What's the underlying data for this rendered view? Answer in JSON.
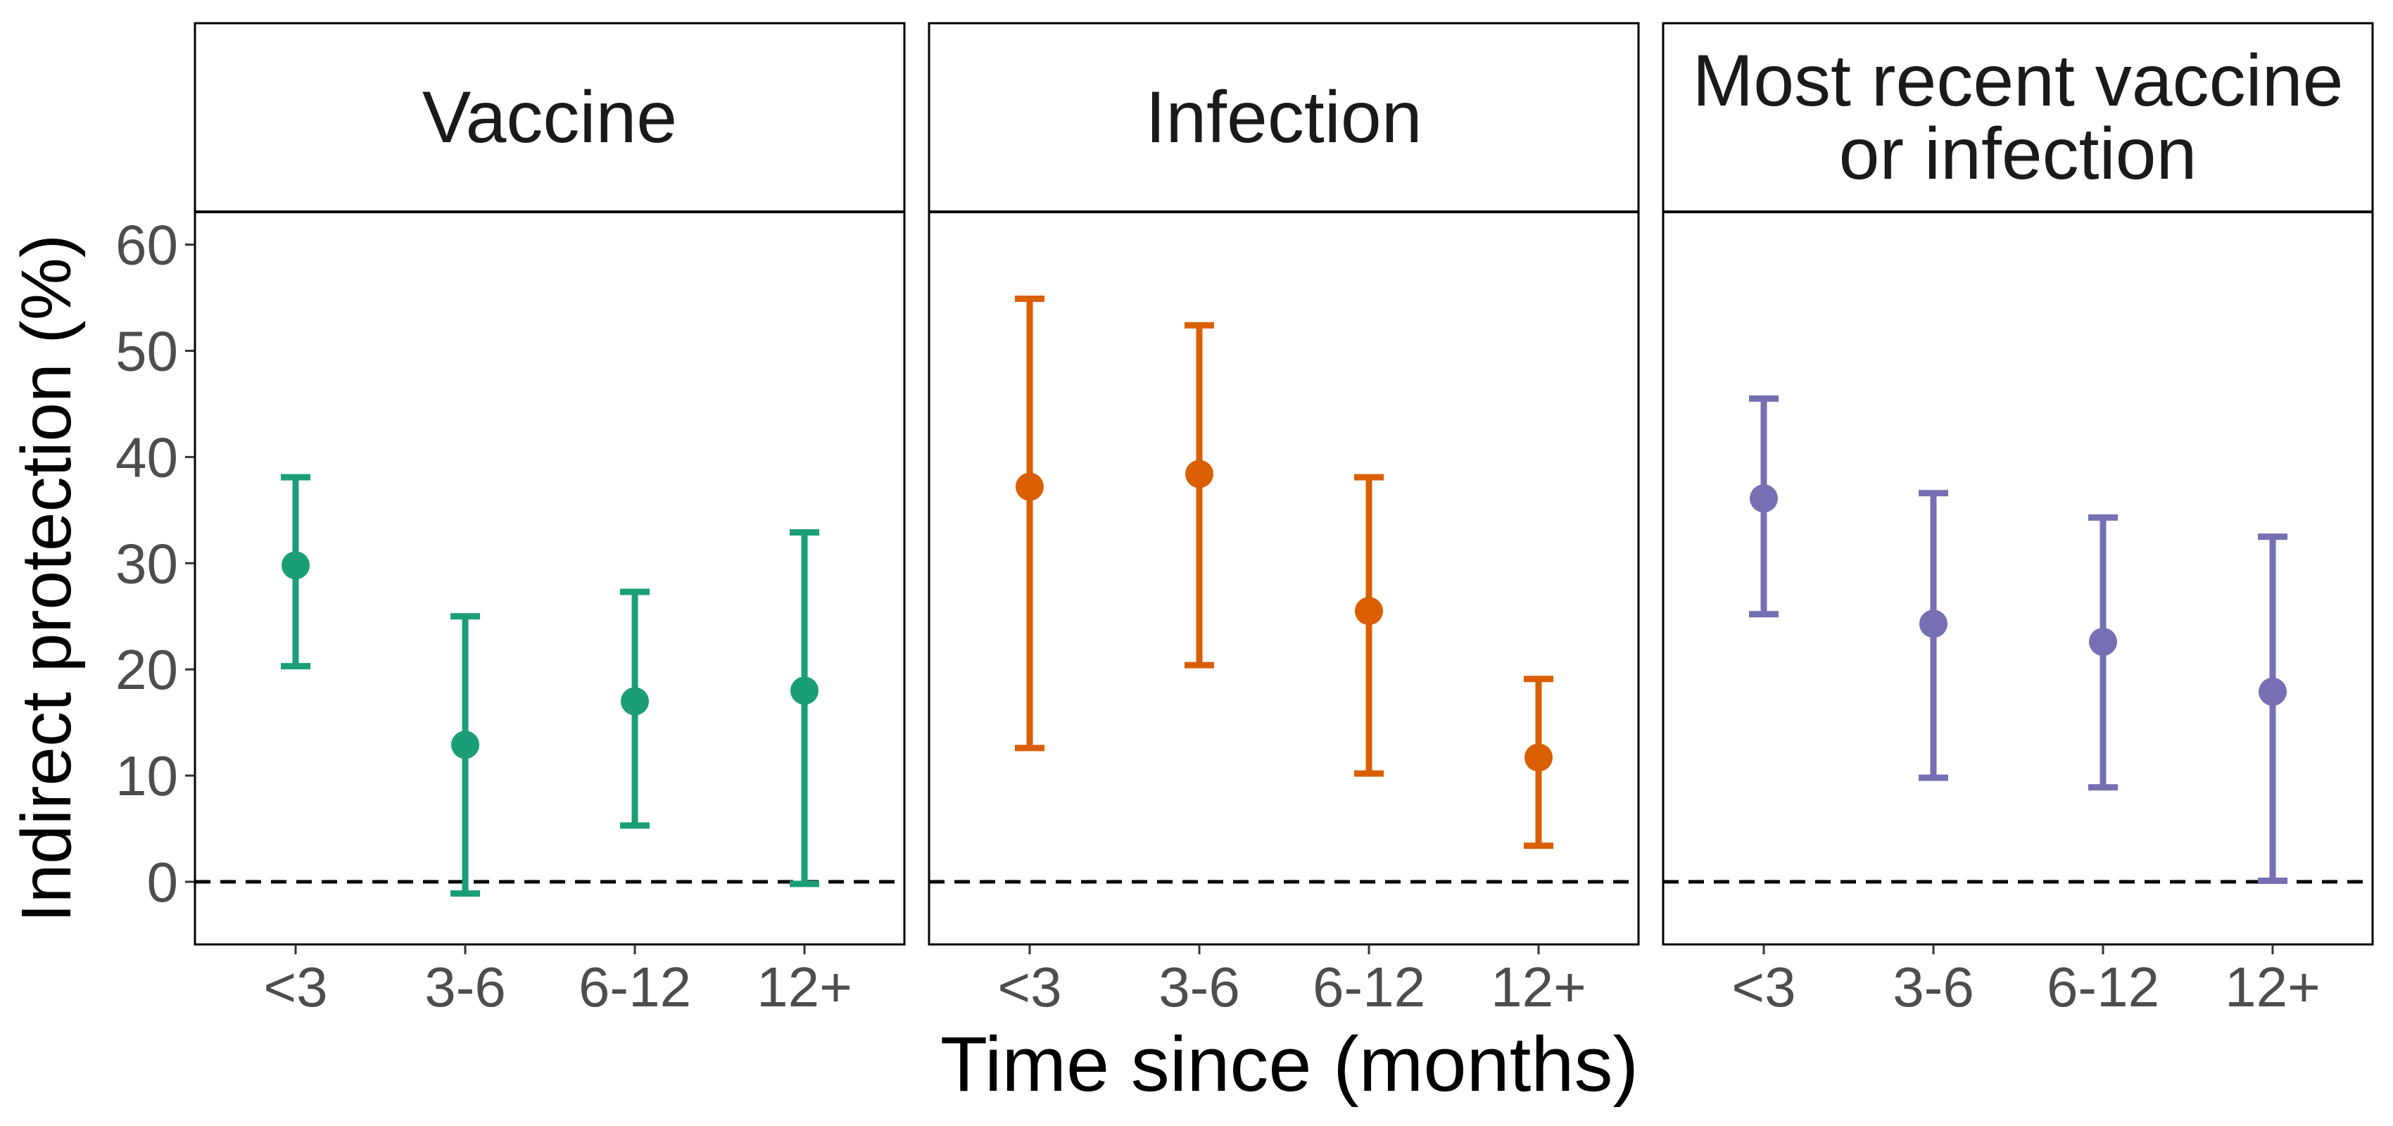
{
  "chart_data": {
    "type": "scatter",
    "xlabel": "Time since (months)",
    "ylabel": "Indirect protection (%)",
    "categories": [
      "<3",
      "3-6",
      "6-12",
      "12+"
    ],
    "ylim": [
      -6,
      63
    ],
    "yticks": [
      0,
      10,
      20,
      30,
      40,
      50,
      60
    ],
    "reference_line": 0,
    "grid": false,
    "panels": [
      {
        "title": "Vaccine",
        "color": "#1b9e77",
        "estimate": [
          29.8,
          12.9,
          17.0,
          18.0
        ],
        "lower": [
          20.3,
          -1.1,
          5.3,
          -0.2
        ],
        "upper": [
          38.1,
          25.0,
          27.3,
          32.9
        ]
      },
      {
        "title": "Infection",
        "color": "#d95f02",
        "estimate": [
          37.2,
          38.4,
          25.5,
          11.7
        ],
        "lower": [
          12.6,
          20.4,
          10.2,
          3.4
        ],
        "upper": [
          54.9,
          52.4,
          38.1,
          19.1
        ]
      },
      {
        "title": "Most recent vaccine\nor infection",
        "color": "#7570b3",
        "estimate": [
          36.1,
          24.3,
          22.6,
          17.9
        ],
        "lower": [
          25.2,
          9.8,
          8.9,
          0.1
        ],
        "upper": [
          45.5,
          36.6,
          34.3,
          32.5
        ]
      }
    ]
  }
}
